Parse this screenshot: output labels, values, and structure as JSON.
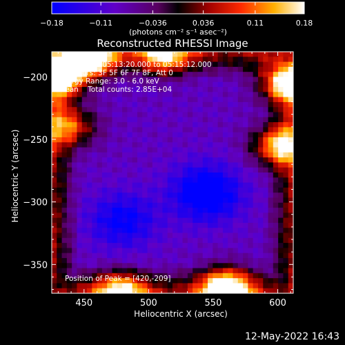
{
  "chart_data": {
    "type": "heatmap",
    "title": "Reconstructed RHESSI Image",
    "xlabel": "Heliocentric X (arcsec)",
    "ylabel": "Heliocentric Y (arcsec)",
    "xlim": [
      425,
      612
    ],
    "ylim": [
      -373,
      -180
    ],
    "xticks": [
      450,
      500,
      550,
      600
    ],
    "yticks": [
      -200,
      -250,
      -300,
      -350
    ],
    "xtick_labels": [
      "450",
      "500",
      "550",
      "600"
    ],
    "ytick_labels": [
      "−200",
      "−250",
      "−300",
      "−350"
    ],
    "colorbar": {
      "range": [
        -0.18,
        0.18
      ],
      "ticks": [
        -0.18,
        -0.11,
        -0.036,
        0.036,
        0.11,
        0.18
      ],
      "tick_labels": [
        "−0.18",
        "−0.11",
        "−0.036",
        "0.036",
        "0.11",
        "0.18"
      ],
      "units_label": "(photons cm⁻² s⁻¹ asec⁻²)"
    },
    "annotations": [
      "15-Jul-2012 05:13:20.000 to 05:15:12.000",
      "Detectors: 3F 5F 6F 7F 8F, Att 0",
      "Energy Range: 3.0 - 6.0 keV",
      "Clean    Total counts: 2.85E+04",
      "Position of Peak = [420,-209]"
    ],
    "image_features": {
      "minimum_blobs": [
        {
          "x": 480,
          "y": -315,
          "value": -0.18
        },
        {
          "x": 548,
          "y": -295,
          "value": -0.17
        },
        {
          "x": 540,
          "y": -290,
          "value": -0.14
        }
      ],
      "bright_regions": [
        {
          "x": 432,
          "y": -200,
          "value": 0.18
        },
        {
          "x": 455,
          "y": -185,
          "value": 0.16
        },
        {
          "x": 605,
          "y": -205,
          "value": 0.14
        },
        {
          "x": 600,
          "y": -255,
          "value": 0.13
        },
        {
          "x": 560,
          "y": -368,
          "value": 0.16
        },
        {
          "x": 478,
          "y": -372,
          "value": 0.1
        },
        {
          "x": 512,
          "y": -183,
          "value": 0.09
        },
        {
          "x": 440,
          "y": -240,
          "value": 0.08
        }
      ]
    }
  },
  "footer": {
    "timestamp": "12-May-2022 16:43"
  }
}
